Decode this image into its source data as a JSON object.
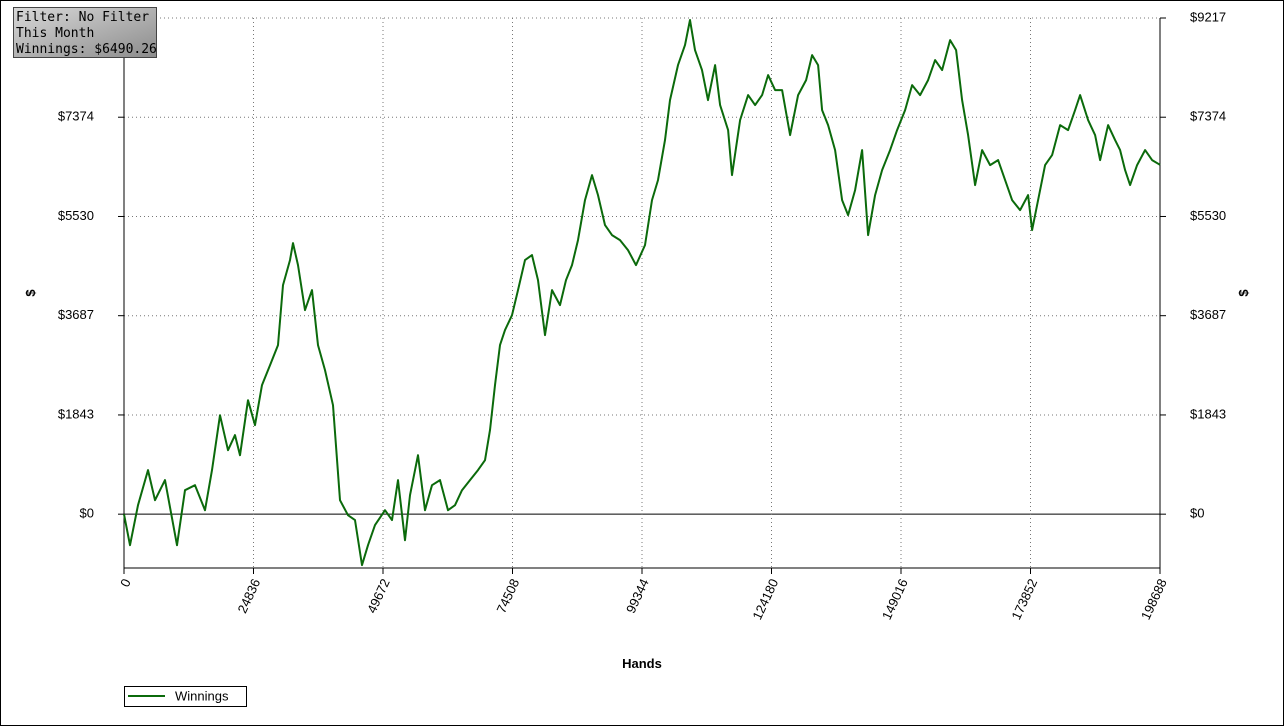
{
  "chart_data": {
    "type": "line",
    "annotations": [
      "Filter: No Filter",
      "This Month",
      "Winnings: $6490.26"
    ],
    "x_label": "Hands",
    "y_label": "$",
    "x": [
      0,
      1151,
      2685,
      4603,
      5946,
      7864,
      10165,
      11700,
      13618,
      15536,
      16878,
      18413,
      19947,
      21290,
      22249,
      23783,
      25126,
      26468,
      28003,
      29537,
      30496,
      31839,
      32414,
      33373,
      34716,
      36058,
      37209,
      38552,
      40086,
      41429,
      42963,
      44306,
      45648,
      46799,
      48142,
      50060,
      51402,
      52553,
      53896,
      54855,
      56389,
      57732,
      59074,
      60609,
      62143,
      63486,
      64828,
      66363,
      67897,
      69240,
      70199,
      71158,
      72117,
      73076,
      74418,
      75569,
      76912,
      78254,
      79405,
      80748,
      82090,
      83625,
      84776,
      85926,
      87077,
      88420,
      89762,
      90913,
      92256,
      93598,
      95133,
      96667,
      98202,
      99928,
      101270,
      102421,
      103764,
      104723,
      106257,
      107600,
      108559,
      109518,
      110860,
      112011,
      113354,
      114313,
      115847,
      116614,
      118149,
      119683,
      121026,
      122368,
      123519,
      124862,
      126204,
      127739,
      129273,
      130808,
      131958,
      133109,
      133876,
      135027,
      136370,
      137712,
      138863,
      140206,
      141548,
      142699,
      144042,
      145384,
      146919,
      148261,
      149796,
      151138,
      152673,
      154207,
      155550,
      156892,
      158427,
      159578,
      160728,
      161879,
      163222,
      164564,
      166099,
      167633,
      168976,
      170318,
      171853,
      173387,
      174154,
      175305,
      176648,
      177990,
      179525,
      181059,
      182402,
      183361,
      184895,
      186238,
      187197,
      188731,
      190074,
      191033,
      191992,
      192951,
      194293,
      195828,
      197170,
      198688
    ],
    "series": [
      {
        "name": "Winnings",
        "color": "#0b6a0b",
        "values": [
          0,
          -576,
          167,
          818,
          260,
          632,
          -576,
          446,
          539,
          74,
          818,
          1839,
          1189,
          1468,
          1096,
          2118,
          1654,
          2397,
          2768,
          3140,
          4255,
          4719,
          5035,
          4626,
          3790,
          4162,
          3140,
          2676,
          2025,
          260,
          -19,
          -111,
          -947,
          -576,
          -204,
          74,
          -111,
          632,
          -483,
          353,
          1096,
          74,
          539,
          632,
          74,
          167,
          446,
          632,
          818,
          1003,
          1561,
          2397,
          3140,
          3419,
          3697,
          4162,
          4719,
          4812,
          4348,
          3326,
          4162,
          3883,
          4348,
          4626,
          5091,
          5834,
          6299,
          5927,
          5370,
          5184,
          5091,
          4905,
          4626,
          4998,
          5834,
          6206,
          6949,
          7692,
          8342,
          8714,
          9179,
          8621,
          8250,
          7692,
          8342,
          7599,
          7135,
          6299,
          7321,
          7785,
          7599,
          7785,
          8157,
          7878,
          7878,
          7042,
          7785,
          8064,
          8528,
          8342,
          7506,
          7228,
          6763,
          5834,
          5555,
          6020,
          6763,
          5184,
          5927,
          6392,
          6763,
          7135,
          7506,
          7971,
          7785,
          8064,
          8435,
          8250,
          8807,
          8621,
          7692,
          7042,
          6113,
          6763,
          6484,
          6577,
          6206,
          5834,
          5648,
          5927,
          5277,
          5834,
          6484,
          6670,
          7228,
          7135,
          7506,
          7785,
          7321,
          7042,
          6577,
          7228,
          6949,
          6763,
          6392,
          6113,
          6484,
          6763,
          6577,
          6490.26
        ]
      }
    ],
    "xlim": [
      0,
      198688
    ],
    "xticks": [
      0,
      24836,
      49672,
      74508,
      99344,
      124180,
      149016,
      173852,
      198688
    ],
    "ylim": [
      -1000,
      9217
    ],
    "yticks": [
      {
        "value": 0,
        "label": "$0"
      },
      {
        "value": 1843,
        "label": "$1843"
      },
      {
        "value": 3687,
        "label": "$3687"
      },
      {
        "value": 5530,
        "label": "$5530"
      },
      {
        "value": 7374,
        "label": "$7374"
      },
      {
        "value": 9217,
        "label": "$9217"
      }
    ],
    "grid": true
  }
}
